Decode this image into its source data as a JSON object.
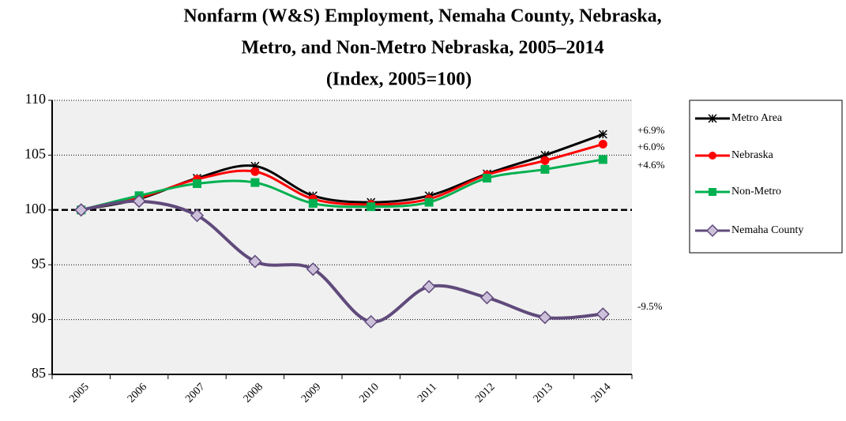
{
  "chart_data": {
    "type": "line",
    "title": [
      "Nonfarm (W&S) Employment, Nemaha County, Nebraska,",
      "Metro, and Non-Metro Nebraska,  2005–2014",
      "(Index, 2005=100)"
    ],
    "categories": [
      "2005",
      "2006",
      "2007",
      "2008",
      "2009",
      "2010",
      "2011",
      "2012",
      "2013",
      "2014"
    ],
    "series": [
      {
        "name": "Metro Area",
        "color": "#000000",
        "marker": "asterisk",
        "values": [
          100,
          101.0,
          102.9,
          104.0,
          101.3,
          100.7,
          101.3,
          103.3,
          105.0,
          106.9
        ]
      },
      {
        "name": "Nebraska",
        "color": "#ff0000",
        "marker": "circle",
        "values": [
          100,
          101.1,
          102.8,
          103.5,
          101.0,
          100.5,
          101.0,
          103.2,
          104.5,
          106.0
        ]
      },
      {
        "name": "Non-Metro",
        "color": "#00b050",
        "marker": "square",
        "values": [
          100,
          101.3,
          102.4,
          102.5,
          100.6,
          100.3,
          100.7,
          102.9,
          103.7,
          104.6
        ]
      },
      {
        "name": "Nemaha County",
        "color": "#604a7b",
        "marker": "diamond",
        "values": [
          100,
          100.8,
          99.5,
          95.3,
          94.6,
          89.8,
          93.0,
          92.0,
          90.2,
          90.5
        ]
      }
    ],
    "annotations": [
      "+6.9%",
      "+6.0%",
      "+4.6%",
      "-9.5%"
    ],
    "ylim": [
      85,
      110
    ],
    "yticks": [
      85,
      90,
      95,
      100,
      105,
      110
    ],
    "grid": true,
    "reference_line": 100,
    "legend": "right"
  }
}
